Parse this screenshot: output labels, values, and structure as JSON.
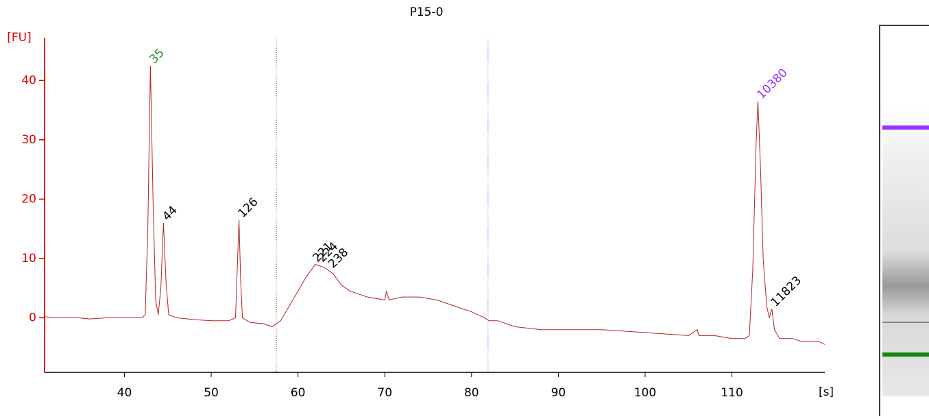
{
  "chart_data": {
    "type": "line",
    "title": "P15-0",
    "y_label": "[FU]",
    "x_label": "[s]",
    "color": "#b22222",
    "axis_color": "#dd0000",
    "xlim": [
      30.8,
      120.7
    ],
    "ylim": [
      -9.2,
      47.2
    ],
    "xticks": [
      40,
      50,
      60,
      70,
      80,
      90,
      100,
      110
    ],
    "yticks": [
      0,
      10,
      20,
      30,
      40
    ],
    "x": [
      30.8,
      32,
      34,
      36,
      38,
      40,
      41,
      42,
      42.4,
      42.7,
      43.0,
      43.3,
      43.6,
      43.9,
      44.2,
      44.5,
      44.8,
      45.1,
      46,
      48,
      50,
      52,
      52.8,
      53.0,
      53.2,
      53.4,
      53.6,
      54.5,
      56,
      57,
      58,
      59,
      60,
      61,
      62,
      63,
      64,
      65,
      66,
      67,
      68,
      70,
      70.2,
      70.5,
      72,
      74,
      76,
      78,
      80,
      81.5,
      82,
      83,
      85,
      88,
      90,
      95,
      100,
      105,
      106,
      106.2,
      108,
      110,
      111.5,
      112,
      112.4,
      112.8,
      113.0,
      113.3,
      113.6,
      114,
      114.3,
      114.6,
      114.9,
      115.5,
      117,
      118,
      120,
      120.7
    ],
    "values": [
      0.2,
      0,
      0.1,
      -0.2,
      0,
      0,
      0,
      0,
      0.5,
      15,
      42.5,
      20,
      3,
      0.5,
      5,
      16,
      6,
      0.5,
      0,
      -0.3,
      -0.5,
      -0.5,
      0,
      8,
      16.5,
      6,
      0,
      -0.8,
      -1,
      -1.5,
      -0.5,
      2,
      4.5,
      7,
      9,
      8.5,
      7.5,
      5.5,
      4.5,
      4,
      3.5,
      3,
      4.5,
      3,
      3.5,
      3.5,
      3,
      2,
      1,
      0,
      -0.5,
      -0.5,
      -1.5,
      -2,
      -2,
      -2,
      -2.5,
      -3,
      -2,
      -3,
      -3,
      -3.5,
      -3.5,
      -3,
      8,
      30,
      36.5,
      25,
      10,
      2,
      0,
      1.5,
      -2,
      -3.5,
      -3.5,
      -4,
      -4,
      -4.5
    ],
    "peaks": [
      {
        "label": "35",
        "x": 43.0,
        "y": 42.5,
        "color": "#228b22"
      },
      {
        "label": "44",
        "x": 44.5,
        "y": 16,
        "color": "#000000"
      },
      {
        "label": "126",
        "x": 53.2,
        "y": 16.5,
        "color": "#000000"
      },
      {
        "label": "221",
        "x": 61.8,
        "y": 9,
        "color": "#000000"
      },
      {
        "label": "224",
        "x": 62.4,
        "y": 9,
        "color": "#000000"
      },
      {
        "label": "238",
        "x": 63.6,
        "y": 8,
        "color": "#000000"
      },
      {
        "label": "10380",
        "x": 113.0,
        "y": 36.5,
        "color": "#9933ff"
      },
      {
        "label": "11823",
        "x": 114.6,
        "y": 1.5,
        "color": "#000000"
      }
    ],
    "markers": [
      {
        "x": 57.5,
        "color": "#8b4513"
      },
      {
        "x": 81.9,
        "color": "#6666ee"
      }
    ]
  }
}
